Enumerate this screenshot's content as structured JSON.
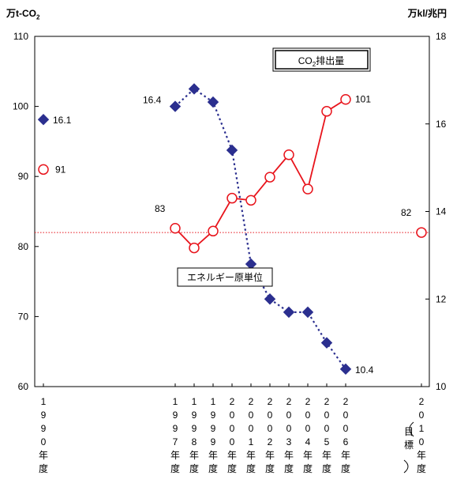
{
  "chart_data": {
    "type": "line",
    "units": {
      "left": "万t-CO",
      "left_sub": "2",
      "right": "万kl/兆円"
    },
    "categories": [
      {
        "id": "1990",
        "label": [
          "1",
          "9",
          "9",
          "0",
          "年",
          "度"
        ]
      },
      {
        "id": "1997",
        "label": [
          "1",
          "9",
          "9",
          "7",
          "年",
          "度"
        ]
      },
      {
        "id": "1998",
        "label": [
          "1",
          "9",
          "9",
          "8",
          "年",
          "度"
        ]
      },
      {
        "id": "1999",
        "label": [
          "1",
          "9",
          "9",
          "9",
          "年",
          "度"
        ]
      },
      {
        "id": "2000",
        "label": [
          "2",
          "0",
          "0",
          "0",
          "年",
          "度"
        ]
      },
      {
        "id": "2001",
        "label": [
          "2",
          "0",
          "0",
          "1",
          "年",
          "度"
        ]
      },
      {
        "id": "2002",
        "label": [
          "2",
          "0",
          "0",
          "2",
          "年",
          "度"
        ]
      },
      {
        "id": "2003",
        "label": [
          "2",
          "0",
          "0",
          "3",
          "年",
          "度"
        ]
      },
      {
        "id": "2004",
        "label": [
          "2",
          "0",
          "0",
          "4",
          "年",
          "度"
        ]
      },
      {
        "id": "2005",
        "label": [
          "2",
          "0",
          "0",
          "5",
          "年",
          "度"
        ]
      },
      {
        "id": "2006",
        "label": [
          "2",
          "0",
          "0",
          "6",
          "年",
          "度"
        ]
      },
      {
        "id": "2010",
        "label": [
          "2",
          "0",
          "1",
          "0",
          "年",
          "度"
        ],
        "note": [
          "目",
          "標"
        ]
      }
    ],
    "y_left": {
      "min": 60,
      "max": 110,
      "ticks": [
        60,
        70,
        80,
        90,
        100,
        110
      ]
    },
    "y_right": {
      "min": 10,
      "max": 18,
      "ticks": [
        10,
        12,
        14,
        16,
        18
      ]
    },
    "series": [
      {
        "name": "CO2排出量",
        "name_main": "CO",
        "name_sub": "2",
        "name_rest": "排出量",
        "axis": "left",
        "color": "#e8141c",
        "marker": "circle",
        "points": [
          {
            "x": "1990",
            "y": 91
          },
          {
            "x": "1997",
            "y": 82.6
          },
          {
            "x": "1998",
            "y": 79.8
          },
          {
            "x": "1999",
            "y": 82.2
          },
          {
            "x": "2000",
            "y": 86.9
          },
          {
            "x": "2001",
            "y": 86.6
          },
          {
            "x": "2002",
            "y": 89.9
          },
          {
            "x": "2003",
            "y": 93.1
          },
          {
            "x": "2004",
            "y": 88.2
          },
          {
            "x": "2005",
            "y": 99.3
          },
          {
            "x": "2006",
            "y": 101
          },
          {
            "x": "2010",
            "y": 82
          }
        ],
        "target_line": 82
      },
      {
        "name": "エネルギー原単位",
        "axis": "right",
        "color": "#2b2f8f",
        "marker": "diamond",
        "points": [
          {
            "x": "1990",
            "y": 16.1
          },
          {
            "x": "1997",
            "y": 16.4
          },
          {
            "x": "1998",
            "y": 16.8
          },
          {
            "x": "1999",
            "y": 16.5
          },
          {
            "x": "2000",
            "y": 15.4
          },
          {
            "x": "2001",
            "y": 12.8
          },
          {
            "x": "2002",
            "y": 12.0
          },
          {
            "x": "2003",
            "y": 11.7
          },
          {
            "x": "2004",
            "y": 11.7
          },
          {
            "x": "2005",
            "y": 11.0
          },
          {
            "x": "2006",
            "y": 10.4
          }
        ]
      }
    ],
    "data_labels": [
      {
        "series": 0,
        "x": "1990",
        "text": "91"
      },
      {
        "series": 0,
        "x": "1997",
        "text": "83"
      },
      {
        "series": 0,
        "x": "2006",
        "text": "101"
      },
      {
        "series": 0,
        "x": "2010",
        "text": "82"
      },
      {
        "series": 1,
        "x": "1990",
        "text": "16.1"
      },
      {
        "series": 1,
        "x": "1997",
        "text": "16.4"
      },
      {
        "series": 1,
        "x": "2006",
        "text": "10.4"
      }
    ]
  }
}
